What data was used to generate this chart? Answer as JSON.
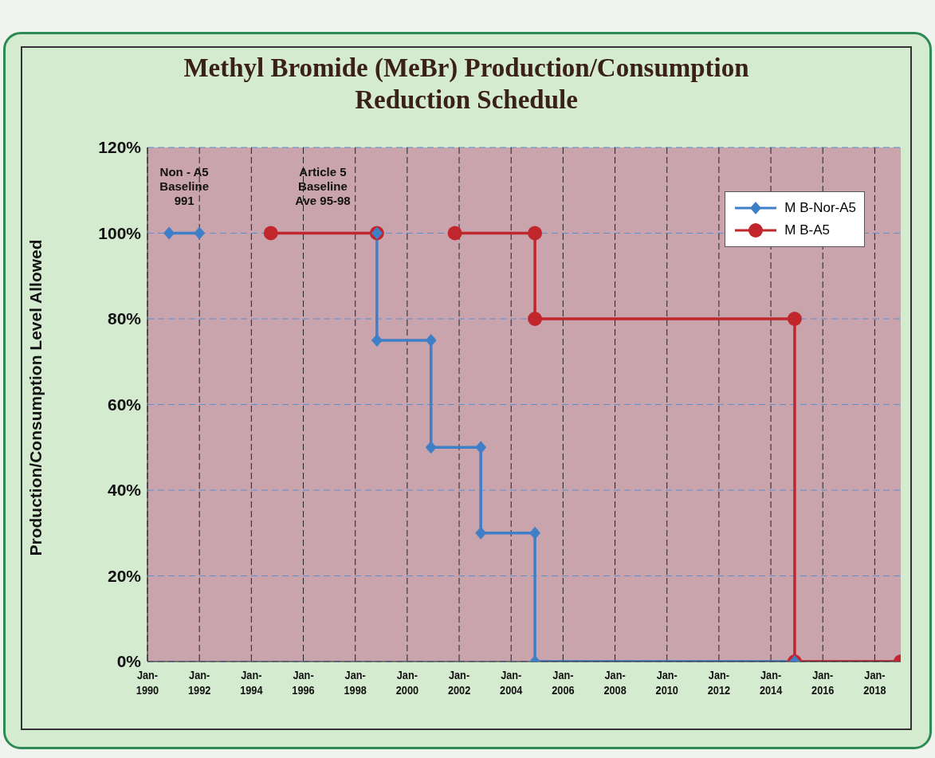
{
  "chart_data": {
    "type": "line",
    "title": "Methyl Bromide (MeBr) Production/Consumption\nReduction Schedule",
    "ylabel": "Production/Consumption Level Allowed",
    "xlim": [
      "1990-01",
      "2019-01"
    ],
    "xticks": [
      {
        "value": "1990-01",
        "label": "Jan-1990"
      },
      {
        "value": "1992-01",
        "label": "Jan-1992"
      },
      {
        "value": "1994-01",
        "label": "Jan-1994"
      },
      {
        "value": "1996-01",
        "label": "Jan-1996"
      },
      {
        "value": "1998-01",
        "label": "Jan-1998"
      },
      {
        "value": "2000-01",
        "label": "Jan-2000"
      },
      {
        "value": "2002-01",
        "label": "Jan-2002"
      },
      {
        "value": "2004-01",
        "label": "Jan-2004"
      },
      {
        "value": "2006-01",
        "label": "Jan-2006"
      },
      {
        "value": "2008-01",
        "label": "Jan-2008"
      },
      {
        "value": "2010-01",
        "label": "Jan-2010"
      },
      {
        "value": "2012-01",
        "label": "Jan-2012"
      },
      {
        "value": "2014-01",
        "label": "Jan-2014"
      },
      {
        "value": "2016-01",
        "label": "Jan-2016"
      },
      {
        "value": "2018-01",
        "label": "Jan-2018"
      }
    ],
    "ylim": [
      0,
      120
    ],
    "yticks": [
      {
        "value": 0,
        "label": "0%"
      },
      {
        "value": 20,
        "label": "20%"
      },
      {
        "value": 40,
        "label": "40%"
      },
      {
        "value": 60,
        "label": "60%"
      },
      {
        "value": 80,
        "label": "80%"
      },
      {
        "value": 100,
        "label": "100%"
      },
      {
        "value": 120,
        "label": "120%"
      }
    ],
    "grid": true,
    "legend": "top right",
    "series": [
      {
        "name": "M B-Nor-A5",
        "color": "#3f7fc8",
        "marker": "diamond",
        "x": [
          "1990-11",
          "1992-01",
          "1995-01",
          "1998-11",
          "1998-11",
          "2000-12",
          "2000-12",
          "2002-11",
          "2002-11",
          "2004-12",
          "2004-12",
          "2014-12"
        ],
        "values": [
          100,
          100,
          null,
          100,
          75,
          75,
          50,
          50,
          30,
          30,
          0,
          0
        ]
      },
      {
        "name": "M B-A5",
        "color": "#c0262c",
        "marker": "circle",
        "x": [
          "1994-10",
          "1998-11",
          "2000-01",
          "2001-11",
          "2004-12",
          "2004-12",
          "2014-12",
          "2014-12",
          "2019-01"
        ],
        "values": [
          100,
          100,
          null,
          100,
          100,
          80,
          80,
          0,
          0
        ]
      }
    ],
    "annotations": [
      {
        "text": "Non - A5\nBaseline\n991",
        "x": "1991-06",
        "y": 100
      },
      {
        "text": "Article 5\nBaseline\nAve 95-98",
        "x": "1996-10",
        "y": 100
      }
    ]
  }
}
